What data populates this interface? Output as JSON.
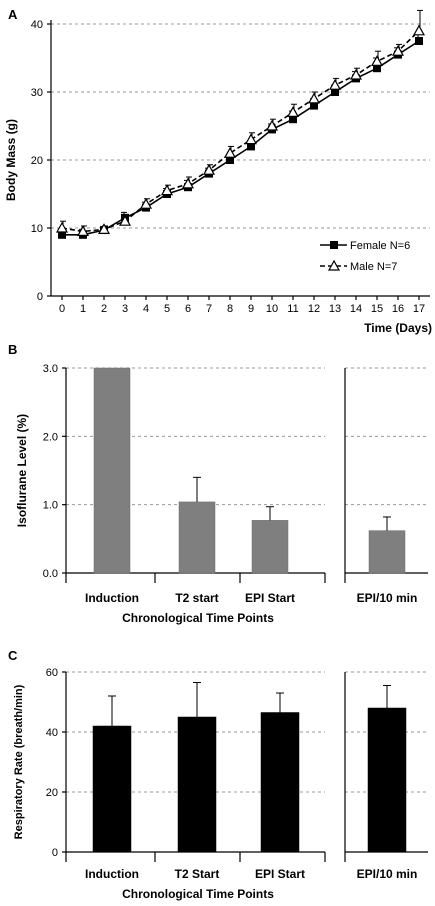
{
  "chart_data": [
    {
      "panel": "A",
      "type": "line",
      "xlabel": "Time (Days)",
      "ylabel": "Body Mass (g)",
      "xlim": [
        0,
        17
      ],
      "ylim": [
        0,
        40
      ],
      "xticks": [
        0,
        1,
        2,
        3,
        4,
        5,
        6,
        7,
        8,
        9,
        10,
        11,
        12,
        13,
        14,
        15,
        16,
        17
      ],
      "yticks": [
        0,
        10,
        20,
        30,
        40
      ],
      "grid": true,
      "legend_position": "bottom-right",
      "series": [
        {
          "name": "Female N=6",
          "marker": "square",
          "style": "solid",
          "x": [
            0,
            1,
            2,
            3,
            4,
            5,
            6,
            7,
            8,
            9,
            10,
            11,
            12,
            13,
            14,
            15,
            16,
            17
          ],
          "values": [
            9,
            9,
            9.7,
            11.5,
            13,
            15,
            16,
            18,
            20,
            22,
            24.5,
            26,
            28,
            30,
            32,
            33.5,
            35.5,
            37.5
          ],
          "errors": [
            0.8,
            0.8,
            0.5,
            0.8,
            0.8,
            0.8,
            1,
            0.8,
            0.8,
            0.8,
            0.8,
            1.2,
            1,
            1,
            1,
            1.5,
            1,
            1
          ]
        },
        {
          "name": "Male N=7",
          "marker": "triangle",
          "style": "dashed",
          "x": [
            0,
            1,
            2,
            3,
            4,
            5,
            6,
            7,
            8,
            9,
            10,
            11,
            12,
            13,
            14,
            15,
            16,
            17
          ],
          "values": [
            10,
            9.5,
            9.8,
            11,
            13.5,
            15.5,
            16.5,
            18.5,
            21,
            23,
            25,
            27,
            29,
            31,
            32.5,
            34.5,
            36,
            39
          ],
          "errors": [
            1,
            0.8,
            0.5,
            0.8,
            0.8,
            0.8,
            1,
            0.8,
            1,
            1,
            1,
            1.2,
            1,
            1,
            1,
            1.5,
            1,
            3
          ]
        }
      ]
    },
    {
      "panel": "B",
      "type": "bar",
      "xlabel": "Chronological Time Points",
      "ylabel": "Isoflurane Level (%)",
      "ylim": [
        0,
        3
      ],
      "yticks": [
        "0.0",
        "1.0",
        "2.0",
        "3.0"
      ],
      "grid": true,
      "color": "#7f7f7f",
      "categories": [
        "Induction",
        "T2 start",
        "EPI Start",
        "EPI/10 min"
      ],
      "values": [
        3.0,
        1.04,
        0.77,
        0.62
      ],
      "errors": [
        0.0,
        0.36,
        0.2,
        0.2
      ]
    },
    {
      "panel": "C",
      "type": "bar",
      "xlabel": "Chronological Time Points",
      "ylabel": "Respiratory Rate (breath/min)",
      "ylim": [
        0,
        60
      ],
      "yticks": [
        "0",
        "20",
        "40",
        "60"
      ],
      "grid": true,
      "color": "#000000",
      "categories": [
        "Induction",
        "T2 Start",
        "EPI Start",
        "EPI/10 min"
      ],
      "values": [
        42,
        45,
        46.5,
        48
      ],
      "errors": [
        10,
        11.5,
        6.5,
        7.5
      ]
    }
  ]
}
